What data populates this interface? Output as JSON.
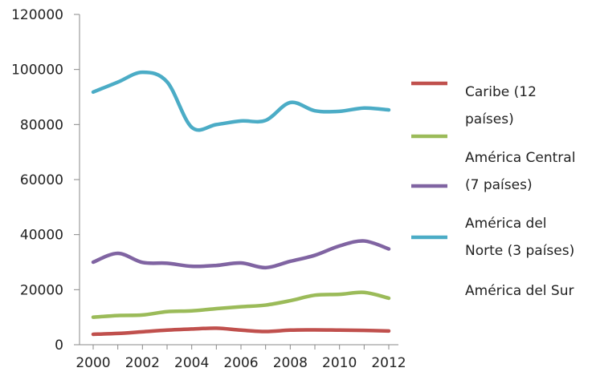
{
  "chart_data": {
    "type": "line",
    "title": "",
    "xlabel": "",
    "ylabel": "",
    "x": [
      2000,
      2001,
      2002,
      2003,
      2004,
      2005,
      2006,
      2007,
      2008,
      2009,
      2010,
      2011,
      2012
    ],
    "x_ticks": [
      "2000",
      "2002",
      "2004",
      "2006",
      "2008",
      "2010",
      "2012"
    ],
    "y_ticks": [
      "0",
      "20000",
      "40000",
      "60000",
      "80000",
      "100000",
      "120000"
    ],
    "ylim": [
      0,
      120000
    ],
    "grid": false,
    "legend_position": "right",
    "series": [
      {
        "name": "Caribe (12 países)",
        "color": "#c0504d",
        "values": [
          3800,
          4100,
          4700,
          5300,
          5700,
          6000,
          5300,
          4800,
          5300,
          5400,
          5300,
          5200,
          5000
        ]
      },
      {
        "name": "América Central (7 países)",
        "color": "#9bbb59",
        "values": [
          10000,
          10600,
          10800,
          12000,
          12300,
          13100,
          13800,
          14400,
          16000,
          18000,
          18300,
          19000,
          16900
        ]
      },
      {
        "name": "América del Norte (3 países)",
        "color": "#8064a2",
        "values": [
          30000,
          33200,
          29900,
          29600,
          28500,
          28800,
          29700,
          28000,
          30300,
          32500,
          35900,
          37700,
          34800
        ]
      },
      {
        "name": "América del Sur",
        "color": "#4bacc6",
        "values": [
          91800,
          95400,
          99000,
          95500,
          79000,
          80000,
          81300,
          81500,
          88000,
          85000,
          84800,
          86000,
          85300
        ]
      }
    ],
    "legend_lines": [
      {
        "text": "Caribe (12",
        "y": 120
      },
      {
        "text": "países)",
        "y": 154
      },
      {
        "text": "América Central",
        "y": 202
      },
      {
        "text": "(7 países)",
        "y": 236
      },
      {
        "text": "América del",
        "y": 284
      },
      {
        "text": "Norte (3 países)",
        "y": 318
      },
      {
        "text": "América del Sur",
        "y": 368
      }
    ],
    "legend_swatches": [
      {
        "color": "#c0504d",
        "y": 104
      },
      {
        "color": "#9bbb59",
        "y": 170
      },
      {
        "color": "#8064a2",
        "y": 232
      },
      {
        "color": "#4bacc6",
        "y": 296
      }
    ]
  }
}
